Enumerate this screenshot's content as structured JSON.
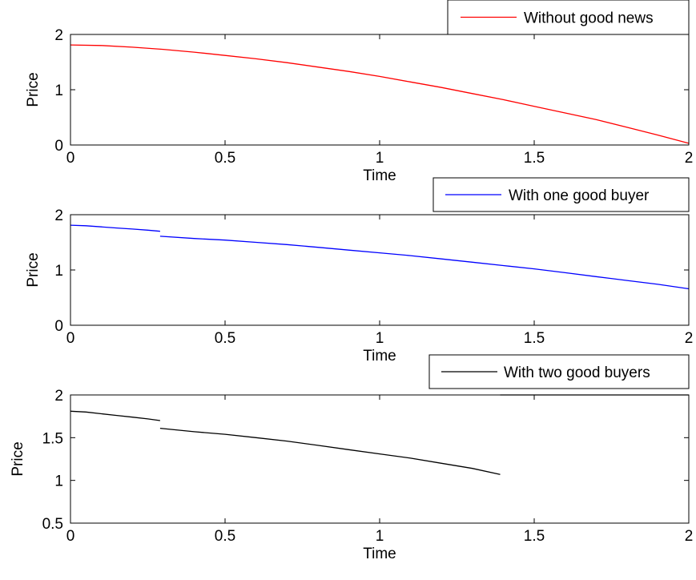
{
  "chart_data": [
    {
      "type": "line",
      "xlabel": "Time",
      "ylabel": "Price",
      "xlim": [
        0,
        2
      ],
      "ylim": [
        0,
        2
      ],
      "xticks": [
        "0",
        "0.5",
        "1",
        "1.5",
        "2"
      ],
      "yticks": [
        "0",
        "1",
        "2"
      ],
      "grid": false,
      "legend_position": "top-right",
      "series": [
        {
          "name": "Without good news",
          "color": "#ff0000",
          "segments": [
            {
              "x": [
                0,
                0.1,
                0.2,
                0.3,
                0.4,
                0.5,
                0.6,
                0.7,
                0.8,
                0.9,
                1.0,
                1.1,
                1.2,
                1.3,
                1.4,
                1.5,
                1.6,
                1.7,
                1.8,
                1.9,
                2.0
              ],
              "y": [
                1.81,
                1.8,
                1.77,
                1.73,
                1.68,
                1.62,
                1.56,
                1.49,
                1.41,
                1.33,
                1.24,
                1.14,
                1.04,
                0.93,
                0.82,
                0.7,
                0.58,
                0.46,
                0.32,
                0.18,
                0.03
              ]
            }
          ]
        }
      ]
    },
    {
      "type": "line",
      "xlabel": "Time",
      "ylabel": "Price",
      "xlim": [
        0,
        2
      ],
      "ylim": [
        0,
        2
      ],
      "xticks": [
        "0",
        "0.5",
        "1",
        "1.5",
        "2"
      ],
      "yticks": [
        "0",
        "1",
        "2"
      ],
      "grid": false,
      "legend_position": "top-right",
      "series": [
        {
          "name": "With one good buyer",
          "color": "#0000ff",
          "segments": [
            {
              "x": [
                0,
                0.05,
                0.1,
                0.15,
                0.2,
                0.25,
                0.29
              ],
              "y": [
                1.81,
                1.8,
                1.78,
                1.76,
                1.74,
                1.72,
                1.7
              ]
            },
            {
              "x": [
                0.29,
                0.4,
                0.5,
                0.6,
                0.7,
                0.8,
                0.9,
                1.0,
                1.1,
                1.2,
                1.3,
                1.4,
                1.5,
                1.6,
                1.7,
                1.8,
                1.9,
                2.0
              ],
              "y": [
                1.61,
                1.57,
                1.54,
                1.5,
                1.46,
                1.41,
                1.36,
                1.31,
                1.26,
                1.2,
                1.14,
                1.08,
                1.02,
                0.95,
                0.88,
                0.81,
                0.74,
                0.66
              ]
            }
          ]
        }
      ]
    },
    {
      "type": "line",
      "xlabel": "Time",
      "ylabel": "Price",
      "xlim": [
        0,
        2
      ],
      "ylim": [
        0.5,
        2
      ],
      "xticks": [
        "0",
        "0.5",
        "1",
        "1.5",
        "2"
      ],
      "yticks": [
        "0.5",
        "1",
        "1.5",
        "2"
      ],
      "grid": false,
      "legend_position": "top-right",
      "series": [
        {
          "name": "With two good buyers",
          "color": "#000000",
          "segments": [
            {
              "x": [
                0,
                0.05,
                0.1,
                0.15,
                0.2,
                0.25,
                0.29
              ],
              "y": [
                1.81,
                1.8,
                1.78,
                1.76,
                1.74,
                1.72,
                1.7
              ]
            },
            {
              "x": [
                0.29,
                0.4,
                0.5,
                0.6,
                0.7,
                0.8,
                0.9,
                1.0,
                1.1,
                1.2,
                1.3,
                1.39
              ],
              "y": [
                1.61,
                1.57,
                1.54,
                1.5,
                1.46,
                1.41,
                1.36,
                1.31,
                1.26,
                1.2,
                1.14,
                1.07
              ]
            },
            {
              "x": [
                1.39,
                2.0
              ],
              "y": [
                2.0,
                2.0
              ]
            }
          ]
        }
      ]
    }
  ]
}
